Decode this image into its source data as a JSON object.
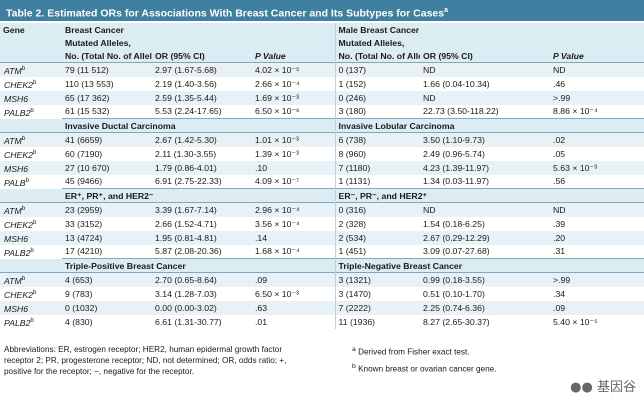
{
  "title": "Table 2. Estimated ORs for Associations With Breast Cancer and Its Subtypes for Cases",
  "title_sup": "a",
  "header": {
    "gene": "Gene",
    "left_group": "Breast Cancer",
    "right_group": "Male Breast Cancer",
    "col1a": "Mutated Alleles,",
    "col1b": "No. (Total No. of Alleles)",
    "or": "OR (95% CI)",
    "p": "P Value"
  },
  "sections": [
    {
      "left_title": "",
      "right_title": "",
      "rows": [
        {
          "gene": "ATM",
          "sup": "b",
          "a": "79 (11 512)",
          "b": "2.97 (1.67-5.68)",
          "c": "4.02 × 10⁻⁵",
          "d": "0 (137)",
          "e": "ND",
          "f": "ND"
        },
        {
          "gene": "CHEK2",
          "sup": "b",
          "a": "110 (13 553)",
          "b": "2.19 (1.40-3.56)",
          "c": "2.66 × 10⁻⁴",
          "d": "1 (152)",
          "e": "1.66 (0.04-10.34)",
          "f": ".46"
        },
        {
          "gene": "MSH6",
          "sup": "",
          "a": "65 (17 362)",
          "b": "2.59 (1.35-5.44)",
          "c": "1.69 × 10⁻³",
          "d": "0 (246)",
          "e": "ND",
          "f": ">.99"
        },
        {
          "gene": "PALB2",
          "sup": "b",
          "a": "61 (15 532)",
          "b": "5.53 (2.24-17.65)",
          "c": "6.50 × 10⁻⁶",
          "d": "3 (180)",
          "e": "22.73 (3.50-118.22)",
          "f": "8.86 × 10⁻⁴"
        }
      ]
    },
    {
      "left_title": "Invasive Ductal Carcinoma",
      "right_title": "Invasive Lobular Carcinoma",
      "rows": [
        {
          "gene": "ATM",
          "sup": "b",
          "a": "41 (6659)",
          "b": "2.67 (1.42-5.30)",
          "c": "1.01 × 10⁻³",
          "d": "6 (738)",
          "e": "3.50 (1.10-9.73)",
          "f": ".02"
        },
        {
          "gene": "CHEK2",
          "sup": "b",
          "a": "60 (7190)",
          "b": "2.11 (1.30-3.55)",
          "c": "1.39 × 10⁻³",
          "d": "8 (960)",
          "e": "2.49 (0.96-5.74)",
          "f": ".05"
        },
        {
          "gene": "MSH6",
          "sup": "",
          "a": "27 (10 670)",
          "b": "1.79 (0.86-4.01)",
          "c": ".10",
          "d": "7 (1180)",
          "e": "4.23 (1.39-11.97)",
          "f": "5.63 × 10⁻³"
        },
        {
          "gene": "PALB",
          "sup": "b",
          "a": "45 (9466)",
          "b": "6.91 (2.75-22.33)",
          "c": "4.09 × 10⁻⁷",
          "d": "1 (1131)",
          "e": "1.34 (0.03-11.97)",
          "f": ".56"
        }
      ]
    },
    {
      "left_title": "ER⁺, PR⁺, and HER2⁻",
      "right_title": "ER⁻, PR⁻, and HER2⁺",
      "rows": [
        {
          "gene": "ATM",
          "sup": "b",
          "a": "23 (2959)",
          "b": "3.39 (1.67-7.14)",
          "c": "2.96 × 10⁻⁴",
          "d": "0 (316)",
          "e": "ND",
          "f": "ND"
        },
        {
          "gene": "CHEK2",
          "sup": "b",
          "a": "33 (3152)",
          "b": "2.66 (1.52-4.71)",
          "c": "3.56 × 10⁻⁴",
          "d": "2 (328)",
          "e": "1.54 (0.18-6.25)",
          "f": ".39"
        },
        {
          "gene": "MSH6",
          "sup": "",
          "a": "13 (4724)",
          "b": "1.95 (0.81-4.81)",
          "c": ".14",
          "d": "2 (534)",
          "e": "2.67 (0.29-12.29)",
          "f": ".20"
        },
        {
          "gene": "PALB2",
          "sup": "b",
          "a": "17 (4210)",
          "b": "5.87 (2.08-20.36)",
          "c": "1.68 × 10⁻⁴",
          "d": "1 (451)",
          "e": "3.09 (0.07-27.68)",
          "f": ".31"
        }
      ]
    },
    {
      "left_title": "Triple-Positive Breast Cancer",
      "right_title": "Triple-Negative Breast Cancer",
      "rows": [
        {
          "gene": "ATM",
          "sup": "b",
          "a": "4 (653)",
          "b": "2.70 (0.65-8.64)",
          "c": ".09",
          "d": "3 (1321)",
          "e": "0.99 (0.18-3.55)",
          "f": ">.99"
        },
        {
          "gene": "CHEK2",
          "sup": "b",
          "a": "9 (783)",
          "b": "3.14 (1.28-7.03)",
          "c": "6.50 × 10⁻³",
          "d": "3 (1470)",
          "e": "0.51 (0.10-1.70)",
          "f": ".34"
        },
        {
          "gene": "MSH6",
          "sup": "",
          "a": "0 (1032)",
          "b": "0.00 (0.00-3.02)",
          "c": ".63",
          "d": "7 (2222)",
          "e": "2.25 (0.74-6.36)",
          "f": ".09"
        },
        {
          "gene": "PALB2",
          "sup": "b",
          "a": "4 (830)",
          "b": "6.61 (1.31-30.77)",
          "c": ".01",
          "d": "11 (1936)",
          "e": "8.27 (2.65-30.37)",
          "f": "5.40 × 10⁻⁵"
        }
      ]
    }
  ],
  "footer": {
    "left": "Abbreviations: ER, estrogen receptor; HER2, human epidermal growth factor receptor 2; PR, progesterone receptor; ND, not determined; OR, odds ratio; +, positive for the receptor; −, negative for the receptor.",
    "note_a_mark": "a",
    "note_a": "Derived from Fisher exact test.",
    "note_b_mark": "b",
    "note_b": "Known breast or ovarian cancer gene."
  },
  "watermark": "基因谷"
}
